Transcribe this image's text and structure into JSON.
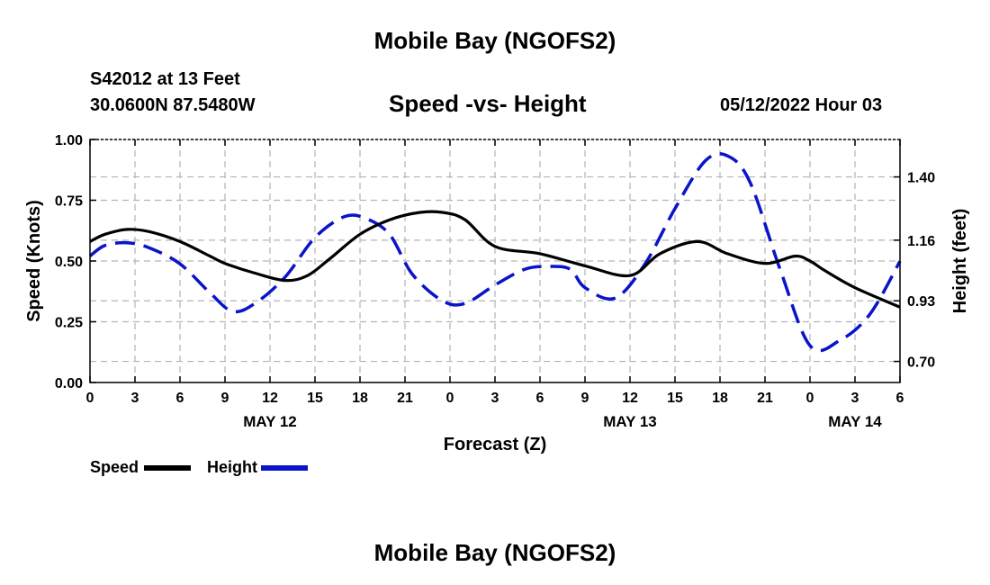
{
  "header": {
    "title": "Mobile Bay (NGOFS2)",
    "station": "S42012 at 13 Feet",
    "coordinates": "30.0600N  87.5480W",
    "chart_title": "Speed -vs- Height",
    "datetime": "05/12/2022 Hour 03"
  },
  "footer": {
    "title": "Mobile Bay (NGOFS2)"
  },
  "legend": {
    "speed_label": "Speed",
    "height_label": "Height"
  },
  "colors": {
    "speed": "#000000",
    "height": "#0a14c8",
    "grid": "#b4b4b4"
  },
  "chart_data": {
    "type": "line",
    "xlabel": "Forecast (Z)",
    "ylabel_left": "Speed (Knots)",
    "ylabel_right": "Height (feet)",
    "x_unit": "hours from 00Z May 12 2022",
    "xlim": [
      0,
      54
    ],
    "ylim_left": [
      0,
      1
    ],
    "ylim_right": [
      0.62,
      1.542
    ],
    "x_ticks": [
      0,
      3,
      6,
      9,
      12,
      15,
      18,
      21,
      24,
      27,
      30,
      33,
      36,
      39,
      42,
      45,
      48,
      51,
      54
    ],
    "x_tick_labels": [
      "0",
      "3",
      "6",
      "9",
      "12",
      "15",
      "18",
      "21",
      "0",
      "3",
      "6",
      "9",
      "12",
      "15",
      "18",
      "21",
      "0",
      "3",
      "6"
    ],
    "date_labels": [
      {
        "x": 12,
        "label": "MAY 12"
      },
      {
        "x": 36,
        "label": "MAY 13"
      },
      {
        "x": 51,
        "label": "MAY 14"
      }
    ],
    "left_ticks": [
      0,
      0.25,
      0.5,
      0.75,
      1.0
    ],
    "left_tick_labels": [
      "0.00",
      "0.25",
      "0.50",
      "0.75",
      "1.00"
    ],
    "right_ticks": [
      0.7,
      0.93,
      1.16,
      1.4
    ],
    "right_tick_labels": [
      "0.70",
      "0.93",
      "1.16",
      "1.40"
    ],
    "grid": true,
    "series": [
      {
        "name": "Speed",
        "axis": "left",
        "style": "solid",
        "x": [
          0,
          1,
          2.5,
          4,
          6,
          8,
          9,
          11,
          13,
          14.5,
          16,
          18,
          20,
          22,
          23.5,
          25,
          27,
          30,
          33,
          36,
          38,
          40.5,
          42.5,
          45,
          47,
          48,
          49,
          51,
          54
        ],
        "y": [
          0.58,
          0.61,
          0.63,
          0.62,
          0.58,
          0.52,
          0.49,
          0.45,
          0.42,
          0.44,
          0.51,
          0.61,
          0.67,
          0.7,
          0.7,
          0.67,
          0.56,
          0.53,
          0.48,
          0.44,
          0.53,
          0.58,
          0.53,
          0.49,
          0.52,
          0.5,
          0.46,
          0.39,
          0.31
        ]
      },
      {
        "name": "Height",
        "axis": "right",
        "style": "dashed",
        "x": [
          0,
          1,
          2.5,
          4,
          6,
          8,
          9.5,
          11,
          13,
          15,
          17,
          18.5,
          20,
          21.5,
          23.5,
          25,
          27,
          29,
          30.5,
          32,
          33,
          35,
          37,
          39,
          41,
          42.5,
          44,
          46,
          48,
          50,
          52,
          54
        ],
        "y": [
          1.1,
          1.14,
          1.15,
          1.13,
          1.07,
          0.96,
          0.89,
          0.92,
          1.02,
          1.17,
          1.25,
          1.24,
          1.18,
          1.03,
          0.93,
          0.92,
          0.99,
          1.05,
          1.06,
          1.05,
          0.98,
          0.94,
          1.07,
          1.28,
          1.46,
          1.48,
          1.38,
          1.05,
          0.76,
          0.78,
          0.88,
          1.08
        ]
      }
    ]
  }
}
